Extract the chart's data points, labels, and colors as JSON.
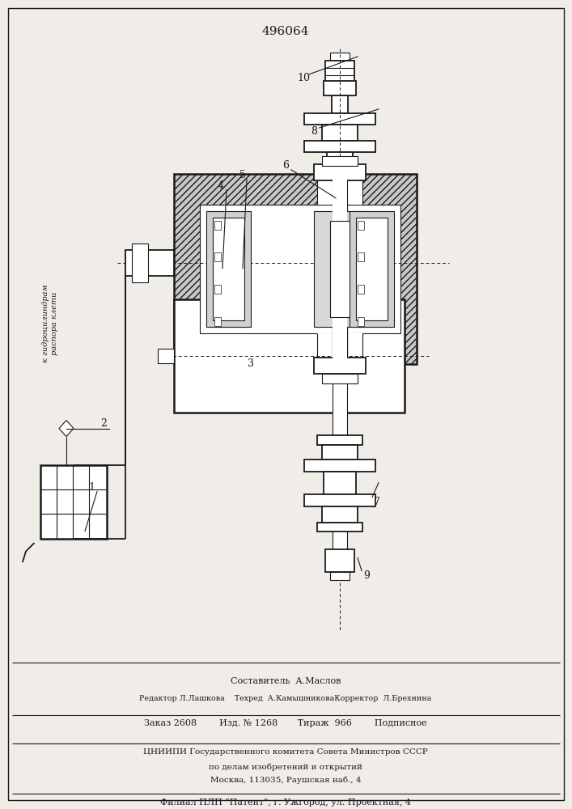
{
  "title": "496064",
  "bg_color": "#f0ede8",
  "line_color": "#1a1a1a",
  "footer": {
    "line1": "Составитель  А.Маслов",
    "line2": "Редактор Л.Лашкова    Техред  А.КамышниковаКорректор  Л.Брехнина",
    "line3": "Заказ 2608        Изд. № 1268       Тираж  966        Подписное",
    "line4": "ЦНИИПИ Государственного комитета Совета Министров СССР",
    "line5": "по делам изобретений и открытий",
    "line6": "Москва, 113035, Раушская наб., 4",
    "line7": "Филиал ПЛП \"Патент\", г. Ужгород, ул. Проектная, 4"
  },
  "rotated_label": "к гидроцилиндрам\nраспора клети"
}
